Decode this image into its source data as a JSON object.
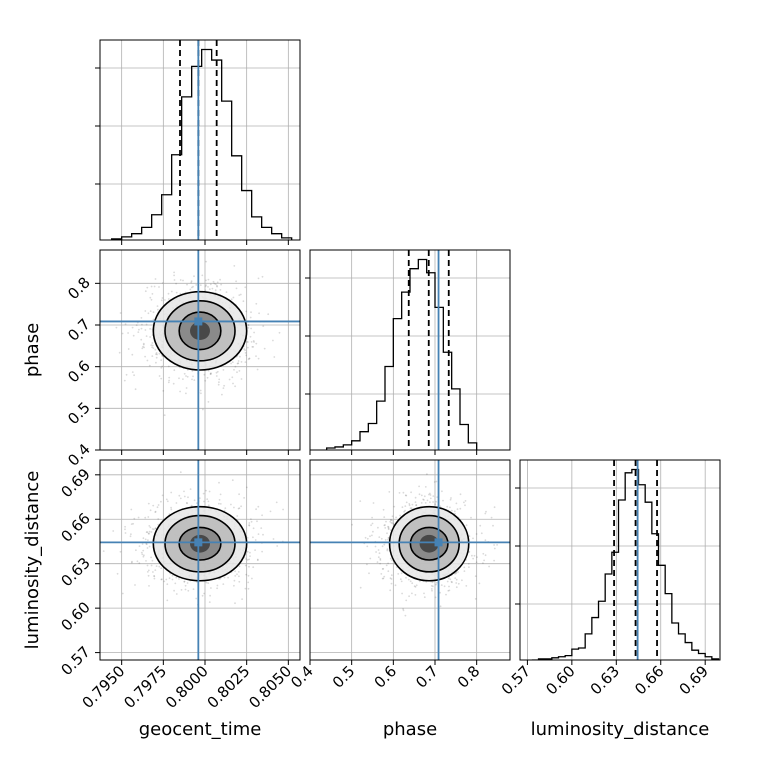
{
  "colors": {
    "truth": "#4682b4",
    "hist": "#000000",
    "grid": "#b0b0b0",
    "contour": "#000000"
  },
  "chart_data": {
    "type": "corner",
    "grid": true,
    "parameters": [
      "geocent_time",
      "phase",
      "luminosity_distance"
    ],
    "truths": [
      0.7996,
      0.7085,
      0.6444
    ],
    "ranges": [
      [
        0.7937,
        0.8057
      ],
      [
        0.4,
        0.88
      ],
      [
        0.565,
        0.7
      ]
    ],
    "ticks": [
      {
        "values": [
          0.795,
          0.7975,
          0.8,
          0.8025,
          0.805
        ],
        "labels": [
          "0.7950",
          "0.7975",
          "0.8000",
          "0.8025",
          "0.8050"
        ]
      },
      {
        "values": [
          0.4,
          0.5,
          0.6,
          0.7,
          0.8
        ],
        "labels": [
          "0.4",
          "0.5",
          "0.6",
          "0.7",
          "0.8"
        ]
      },
      {
        "values": [
          0.57,
          0.6,
          0.63,
          0.66,
          0.69
        ],
        "labels": [
          "0.57",
          "0.60",
          "0.63",
          "0.66",
          "0.69"
        ]
      }
    ],
    "histograms": [
      {
        "parameter": "geocent_time",
        "bin_edges": [
          0.7944,
          0.795,
          0.7956,
          0.7962,
          0.7968,
          0.7974,
          0.798,
          0.7986,
          0.7992,
          0.7998,
          0.8004,
          0.801,
          0.8016,
          0.8022,
          0.8028,
          0.8034,
          0.804,
          0.8046,
          0.8052
        ],
        "counts": [
          1,
          3,
          6,
          12,
          24,
          43,
          81,
          136,
          165,
          181,
          171,
          132,
          80,
          47,
          22,
          12,
          6,
          2
        ],
        "quantiles": [
          0.7985,
          0.7996,
          0.8007
        ]
      },
      {
        "parameter": "phase",
        "bin_edges": [
          0.44,
          0.46,
          0.48,
          0.5,
          0.52,
          0.54,
          0.56,
          0.58,
          0.6,
          0.62,
          0.64,
          0.66,
          0.68,
          0.7,
          0.72,
          0.74,
          0.76,
          0.78,
          0.8
        ],
        "counts": [
          2,
          3,
          5,
          9,
          18,
          26,
          48,
          82,
          129,
          155,
          178,
          187,
          174,
          140,
          96,
          60,
          25,
          7
        ],
        "quantiles": [
          0.637,
          0.685,
          0.733
        ]
      },
      {
        "parameter": "luminosity_distance",
        "bin_edges": [
          0.573,
          0.5775,
          0.582,
          0.5865,
          0.591,
          0.5955,
          0.6,
          0.6045,
          0.609,
          0.6135,
          0.618,
          0.6225,
          0.627,
          0.6315,
          0.636,
          0.6405,
          0.645,
          0.6495,
          0.654,
          0.6585,
          0.663,
          0.6675,
          0.672,
          0.6765,
          0.681,
          0.6855,
          0.69,
          0.6945,
          0.699
        ],
        "counts": [
          0,
          1,
          1,
          2,
          3,
          4,
          10,
          11,
          24,
          39,
          54,
          79,
          99,
          147,
          172,
          175,
          161,
          145,
          116,
          87,
          61,
          34,
          24,
          16,
          9,
          6,
          3,
          1
        ],
        "quantiles": [
          0.6285,
          0.643,
          0.6575
        ]
      }
    ],
    "joint_contours": [
      {
        "x": "geocent_time",
        "y": "phase",
        "center": [
          0.7997,
          0.686
        ],
        "levels": [
          {
            "rx": 0.0006,
            "ry": 0.022
          },
          {
            "rx": 0.00125,
            "ry": 0.045
          },
          {
            "rx": 0.0021,
            "ry": 0.072
          },
          {
            "rx": 0.0028,
            "ry": 0.094
          }
        ]
      },
      {
        "x": "geocent_time",
        "y": "luminosity_distance",
        "center": [
          0.7997,
          0.6435
        ],
        "levels": [
          {
            "rx": 0.0006,
            "ry": 0.006
          },
          {
            "rx": 0.00125,
            "ry": 0.011
          },
          {
            "rx": 0.0021,
            "ry": 0.019
          },
          {
            "rx": 0.0028,
            "ry": 0.025
          }
        ]
      },
      {
        "x": "phase",
        "y": "luminosity_distance",
        "center": [
          0.686,
          0.6435
        ],
        "levels": [
          {
            "rx": 0.023,
            "ry": 0.006
          },
          {
            "rx": 0.045,
            "ry": 0.011
          },
          {
            "rx": 0.072,
            "ry": 0.019
          },
          {
            "rx": 0.095,
            "ry": 0.025
          }
        ]
      }
    ]
  }
}
